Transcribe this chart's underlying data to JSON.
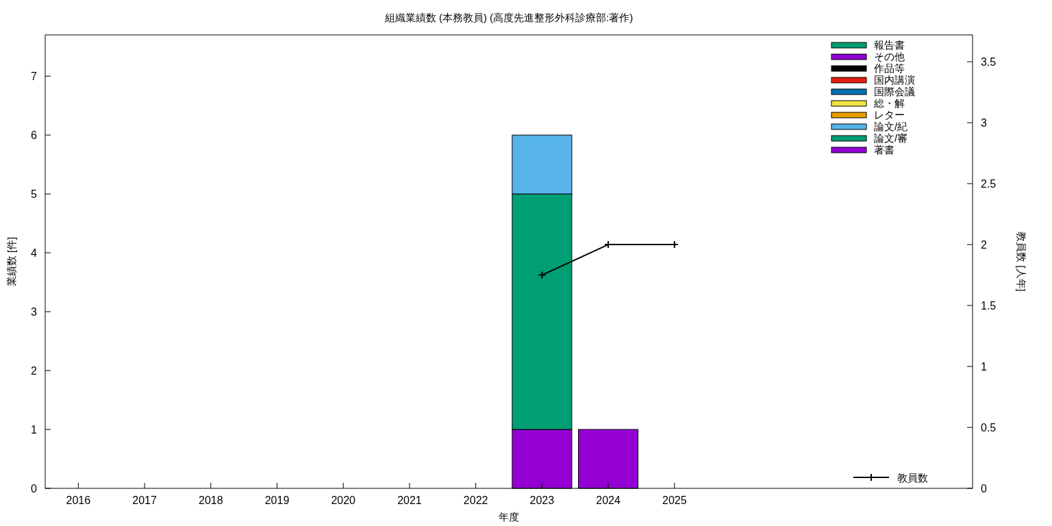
{
  "chart_data": {
    "type": "bar",
    "title": "組織業績数 (本務教員) (高度先進整形外科診療部:著作)",
    "xlabel": "年度",
    "ylabel": "業績数 [件]",
    "y2label": "教員数 [人年]",
    "categories": [
      "2016",
      "2017",
      "2018",
      "2019",
      "2020",
      "2021",
      "2022",
      "2023",
      "2024",
      "2025",
      null,
      null,
      null,
      null
    ],
    "stacked": true,
    "series": [
      {
        "name": "著書",
        "color": "#9400d3",
        "values": [
          0,
          0,
          0,
          0,
          0,
          0,
          0,
          1,
          1,
          0,
          null,
          null,
          null,
          null
        ]
      },
      {
        "name": "論文/審",
        "color": "#009e73",
        "values": [
          0,
          0,
          0,
          0,
          0,
          0,
          0,
          4,
          0,
          0,
          null,
          null,
          null,
          null
        ]
      },
      {
        "name": "論文/紀",
        "color": "#56b4e9",
        "values": [
          0,
          0,
          0,
          0,
          0,
          0,
          0,
          1,
          0,
          0,
          null,
          null,
          null,
          null
        ]
      },
      {
        "name": "レター",
        "color": "#e69f00",
        "values": [
          0,
          0,
          0,
          0,
          0,
          0,
          0,
          0,
          0,
          0,
          null,
          null,
          null,
          null
        ]
      },
      {
        "name": "総・解",
        "color": "#f0e442",
        "values": [
          0,
          0,
          0,
          0,
          0,
          0,
          0,
          0,
          0,
          0,
          null,
          null,
          null,
          null
        ]
      },
      {
        "name": "国際会議",
        "color": "#0072b2",
        "values": [
          0,
          0,
          0,
          0,
          0,
          0,
          0,
          0,
          0,
          0,
          null,
          null,
          null,
          null
        ]
      },
      {
        "name": "国内講演",
        "color": "#e51e10",
        "values": [
          0,
          0,
          0,
          0,
          0,
          0,
          0,
          0,
          0,
          0,
          null,
          null,
          null,
          null
        ]
      },
      {
        "name": "作品等",
        "color": "#000000",
        "values": [
          0,
          0,
          0,
          0,
          0,
          0,
          0,
          0,
          0,
          0,
          null,
          null,
          null,
          null
        ]
      },
      {
        "name": "その他",
        "color": "#9400d3",
        "values": [
          0,
          0,
          0,
          0,
          0,
          0,
          0,
          0,
          0,
          0,
          null,
          null,
          null,
          null
        ]
      },
      {
        "name": "報告書",
        "color": "#009e73",
        "values": [
          0,
          0,
          0,
          0,
          0,
          0,
          0,
          0,
          0,
          0,
          null,
          null,
          null,
          null
        ]
      },
      {
        "name": "教員数",
        "type": "line",
        "axis": "y2",
        "color": "#000000",
        "marker": "cross",
        "values": [
          null,
          null,
          null,
          null,
          null,
          null,
          null,
          1.75,
          2,
          2,
          null,
          null,
          null,
          null
        ]
      }
    ],
    "ylim": [
      0,
      7.7
    ],
    "yticks": [
      0,
      1,
      2,
      3,
      4,
      5,
      6,
      7
    ],
    "y2lim": [
      0,
      3.72
    ],
    "y2ticks": [
      0,
      0.5,
      1,
      1.5,
      2,
      2.5,
      3,
      3.5
    ],
    "grid": false,
    "legend": "top right"
  }
}
